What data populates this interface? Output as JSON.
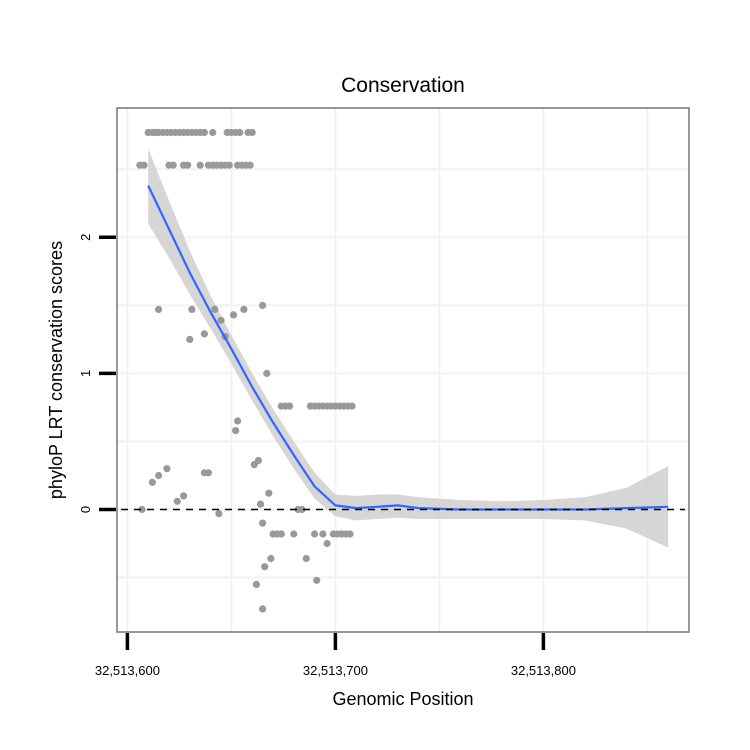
{
  "chart_data": {
    "type": "scatter",
    "title": "Conservation",
    "xlabel": "Genomic Position",
    "ylabel": "phyloP LRT conservation scores",
    "xlim": [
      32513595,
      32513870
    ],
    "ylim": [
      -0.9,
      2.95
    ],
    "x_ticks": [
      32513600,
      32513700,
      32513800
    ],
    "x_tick_labels": [
      "32,513,600",
      "32,513,700",
      "32,513,800"
    ],
    "y_ticks": [
      0,
      1,
      2
    ],
    "y_tick_labels": [
      "0",
      "1",
      "2"
    ],
    "grid": true,
    "reference_line": {
      "y": 0,
      "style": "dashed"
    },
    "colors": {
      "points": "#999999",
      "smooth": "#3366ff",
      "band": "#cccccc",
      "border": "#7f7f7f",
      "grid": "#f2f2f2"
    },
    "points": [
      [
        32513610,
        2.77
      ],
      [
        32513612,
        2.77
      ],
      [
        32513613,
        2.77
      ],
      [
        32513614,
        2.77
      ],
      [
        32513615,
        2.77
      ],
      [
        32513617,
        2.77
      ],
      [
        32513619,
        2.77
      ],
      [
        32513621,
        2.77
      ],
      [
        32513623,
        2.77
      ],
      [
        32513625,
        2.77
      ],
      [
        32513627,
        2.77
      ],
      [
        32513629,
        2.77
      ],
      [
        32513631,
        2.77
      ],
      [
        32513633,
        2.77
      ],
      [
        32513635,
        2.77
      ],
      [
        32513637,
        2.77
      ],
      [
        32513641,
        2.77
      ],
      [
        32513648,
        2.77
      ],
      [
        32513650,
        2.77
      ],
      [
        32513652,
        2.77
      ],
      [
        32513654,
        2.77
      ],
      [
        32513658,
        2.77
      ],
      [
        32513660,
        2.77
      ],
      [
        32513606,
        2.53
      ],
      [
        32513608,
        2.53
      ],
      [
        32513620,
        2.53
      ],
      [
        32513622,
        2.53
      ],
      [
        32513627,
        2.53
      ],
      [
        32513629,
        2.53
      ],
      [
        32513635,
        2.53
      ],
      [
        32513639,
        2.53
      ],
      [
        32513641,
        2.53
      ],
      [
        32513643,
        2.53
      ],
      [
        32513645,
        2.53
      ],
      [
        32513647,
        2.53
      ],
      [
        32513649,
        2.53
      ],
      [
        32513653,
        2.53
      ],
      [
        32513655,
        2.53
      ],
      [
        32513657,
        2.53
      ],
      [
        32513659,
        2.53
      ],
      [
        32513615,
        1.47
      ],
      [
        32513631,
        1.47
      ],
      [
        32513642,
        1.47
      ],
      [
        32513656,
        1.47
      ],
      [
        32513665,
        1.5
      ],
      [
        32513651,
        1.43
      ],
      [
        32513645,
        1.39
      ],
      [
        32513637,
        1.29
      ],
      [
        32513647,
        1.27
      ],
      [
        32513630,
        1.25
      ],
      [
        32513667,
        1.0
      ],
      [
        32513674,
        0.76
      ],
      [
        32513676,
        0.76
      ],
      [
        32513678,
        0.76
      ],
      [
        32513688,
        0.76
      ],
      [
        32513690,
        0.76
      ],
      [
        32513692,
        0.76
      ],
      [
        32513694,
        0.76
      ],
      [
        32513696,
        0.76
      ],
      [
        32513698,
        0.76
      ],
      [
        32513700,
        0.76
      ],
      [
        32513702,
        0.76
      ],
      [
        32513704,
        0.76
      ],
      [
        32513706,
        0.76
      ],
      [
        32513708,
        0.76
      ],
      [
        32513653,
        0.65
      ],
      [
        32513652,
        0.58
      ],
      [
        32513663,
        0.36
      ],
      [
        32513661,
        0.33
      ],
      [
        32513619,
        0.3
      ],
      [
        32513615,
        0.25
      ],
      [
        32513612,
        0.2
      ],
      [
        32513637,
        0.27
      ],
      [
        32513639,
        0.27
      ],
      [
        32513627,
        0.1
      ],
      [
        32513624,
        0.06
      ],
      [
        32513664,
        0.04
      ],
      [
        32513668,
        0.12
      ],
      [
        32513607,
        0.0
      ],
      [
        32513644,
        -0.03
      ],
      [
        32513682,
        0.0
      ],
      [
        32513684,
        0.0
      ],
      [
        32513665,
        -0.1
      ],
      [
        32513670,
        -0.18
      ],
      [
        32513672,
        -0.18
      ],
      [
        32513674,
        -0.18
      ],
      [
        32513680,
        -0.18
      ],
      [
        32513690,
        -0.18
      ],
      [
        32513694,
        -0.18
      ],
      [
        32513699,
        -0.18
      ],
      [
        32513701,
        -0.18
      ],
      [
        32513703,
        -0.18
      ],
      [
        32513705,
        -0.18
      ],
      [
        32513707,
        -0.18
      ],
      [
        32513696,
        -0.25
      ],
      [
        32513669,
        -0.36
      ],
      [
        32513666,
        -0.42
      ],
      [
        32513686,
        -0.36
      ],
      [
        32513662,
        -0.55
      ],
      [
        32513691,
        -0.52
      ],
      [
        32513665,
        -0.73
      ]
    ],
    "smooth": [
      [
        32513610,
        2.38
      ],
      [
        32513620,
        2.06
      ],
      [
        32513630,
        1.74
      ],
      [
        32513640,
        1.45
      ],
      [
        32513650,
        1.18
      ],
      [
        32513660,
        0.9
      ],
      [
        32513670,
        0.64
      ],
      [
        32513680,
        0.4
      ],
      [
        32513690,
        0.17
      ],
      [
        32513700,
        0.03
      ],
      [
        32513710,
        0.01
      ],
      [
        32513720,
        0.02
      ],
      [
        32513730,
        0.03
      ],
      [
        32513740,
        0.01
      ],
      [
        32513760,
        0.0
      ],
      [
        32513780,
        0.0
      ],
      [
        32513800,
        0.0
      ],
      [
        32513820,
        0.0
      ],
      [
        32513840,
        0.01
      ],
      [
        32513860,
        0.02
      ]
    ],
    "band_upper": [
      [
        32513610,
        2.65
      ],
      [
        32513620,
        2.27
      ],
      [
        32513630,
        1.9
      ],
      [
        32513640,
        1.57
      ],
      [
        32513650,
        1.28
      ],
      [
        32513660,
        1.0
      ],
      [
        32513670,
        0.74
      ],
      [
        32513680,
        0.5
      ],
      [
        32513690,
        0.27
      ],
      [
        32513700,
        0.11
      ],
      [
        32513710,
        0.1
      ],
      [
        32513720,
        0.11
      ],
      [
        32513730,
        0.11
      ],
      [
        32513740,
        0.09
      ],
      [
        32513760,
        0.07
      ],
      [
        32513780,
        0.06
      ],
      [
        32513800,
        0.07
      ],
      [
        32513820,
        0.09
      ],
      [
        32513840,
        0.16
      ],
      [
        32513860,
        0.32
      ]
    ],
    "band_lower": [
      [
        32513610,
        2.1
      ],
      [
        32513620,
        1.85
      ],
      [
        32513630,
        1.58
      ],
      [
        32513640,
        1.33
      ],
      [
        32513650,
        1.07
      ],
      [
        32513660,
        0.8
      ],
      [
        32513670,
        0.54
      ],
      [
        32513680,
        0.3
      ],
      [
        32513690,
        0.08
      ],
      [
        32513700,
        -0.05
      ],
      [
        32513710,
        -0.08
      ],
      [
        32513720,
        -0.07
      ],
      [
        32513730,
        -0.06
      ],
      [
        32513740,
        -0.07
      ],
      [
        32513760,
        -0.07
      ],
      [
        32513780,
        -0.07
      ],
      [
        32513800,
        -0.07
      ],
      [
        32513820,
        -0.08
      ],
      [
        32513840,
        -0.14
      ],
      [
        32513860,
        -0.28
      ]
    ]
  }
}
